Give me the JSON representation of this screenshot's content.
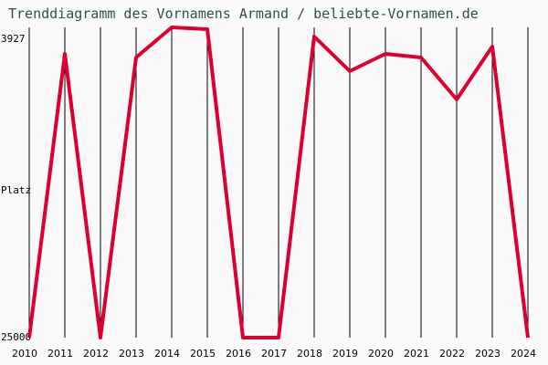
{
  "title": "Trenddiagramm des Vornamens Armand / beliebte-Vornamen.de",
  "colors": {
    "line": "#dc0030",
    "title": "#2f4f4f",
    "grid": "#000000",
    "background": "#fafafa"
  },
  "chart_data": {
    "type": "line",
    "title": "Trenddiagramm des Vornamens Armand / beliebte-Vornamen.de",
    "xlabel": "",
    "ylabel": "Platz",
    "y_tick_labels": [
      "3927",
      "25000"
    ],
    "ylim": [
      25000,
      3927
    ],
    "y_inverted": true,
    "grid": "vertical",
    "categories": [
      "2010",
      "2011",
      "2012",
      "2013",
      "2014",
      "2015",
      "2016",
      "2017",
      "2018",
      "2019",
      "2020",
      "2021",
      "2022",
      "2023",
      "2024"
    ],
    "series": [
      {
        "name": "Armand",
        "values": [
          25000,
          5080,
          25000,
          5336,
          3222,
          3350,
          25000,
          25000,
          3863,
          6297,
          5080,
          5336,
          8282,
          4567,
          25000
        ]
      }
    ]
  }
}
